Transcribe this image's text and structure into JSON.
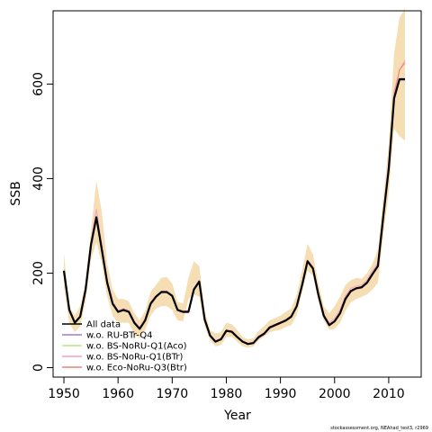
{
  "chart_data": {
    "type": "line",
    "xlabel": "Year",
    "ylabel": "SSB",
    "xlim": [
      1948,
      2016
    ],
    "ylim": [
      -20,
      755
    ],
    "xticks": [
      1950,
      1960,
      1970,
      1980,
      1990,
      2000,
      2010
    ],
    "yticks": [
      0,
      200,
      400,
      600
    ],
    "legend_position": "bottom-left",
    "credit": "stockassessment.org, NEAhad_test3, r2969",
    "band_color": "#f5deb3",
    "x": [
      1950,
      1951,
      1952,
      1953,
      1954,
      1955,
      1956,
      1957,
      1958,
      1959,
      1960,
      1961,
      1962,
      1963,
      1964,
      1965,
      1966,
      1967,
      1968,
      1969,
      1970,
      1971,
      1972,
      1973,
      1974,
      1975,
      1976,
      1977,
      1978,
      1979,
      1980,
      1981,
      1982,
      1983,
      1984,
      1985,
      1986,
      1987,
      1988,
      1989,
      1990,
      1991,
      1992,
      1993,
      1994,
      1995,
      1996,
      1997,
      1998,
      1999,
      2000,
      2001,
      2002,
      2003,
      2004,
      2005,
      2006,
      2007,
      2008,
      2009,
      2010,
      2011,
      2012,
      2013
    ],
    "band_upper": [
      242,
      130,
      110,
      130,
      180,
      290,
      395,
      330,
      220,
      165,
      145,
      145,
      140,
      115,
      100,
      120,
      160,
      175,
      190,
      192,
      178,
      140,
      135,
      190,
      225,
      215,
      120,
      80,
      72,
      75,
      95,
      92,
      80,
      65,
      60,
      62,
      78,
      88,
      100,
      105,
      110,
      118,
      125,
      155,
      205,
      262,
      240,
      180,
      130,
      115,
      130,
      150,
      175,
      185,
      190,
      188,
      200,
      220,
      250,
      360,
      470,
      665,
      740,
      760
    ],
    "band_lower": [
      170,
      95,
      75,
      88,
      140,
      230,
      265,
      220,
      150,
      110,
      95,
      95,
      95,
      70,
      62,
      80,
      110,
      125,
      130,
      130,
      122,
      100,
      98,
      145,
      155,
      150,
      88,
      58,
      45,
      48,
      65,
      65,
      55,
      45,
      42,
      45,
      58,
      66,
      75,
      78,
      80,
      86,
      90,
      112,
      160,
      205,
      195,
      140,
      100,
      80,
      82,
      95,
      120,
      138,
      145,
      150,
      155,
      165,
      180,
      280,
      370,
      505,
      490,
      480
    ],
    "series": [
      {
        "name": "All data",
        "color": "#000000",
        "values": [
          205,
          122,
          95,
          108,
          165,
          260,
          318,
          250,
          180,
          135,
          118,
          122,
          118,
          95,
          82,
          100,
          135,
          150,
          160,
          160,
          152,
          122,
          118,
          118,
          165,
          182,
          102,
          68,
          55,
          60,
          78,
          76,
          65,
          55,
          50,
          52,
          65,
          72,
          85,
          90,
          95,
          100,
          108,
          130,
          175,
          225,
          210,
          155,
          110,
          90,
          98,
          115,
          145,
          162,
          168,
          170,
          180,
          198,
          215,
          320,
          420,
          570,
          610,
          610
        ]
      },
      {
        "name": "w.o. RU-BTr-Q4",
        "color": "#a37cd0",
        "values": [
          205,
          122,
          96,
          108,
          165,
          262,
          320,
          250,
          181,
          136,
          118,
          123,
          118,
          96,
          83,
          100,
          136,
          150,
          160,
          160,
          152,
          122,
          118,
          119,
          166,
          182,
          103,
          68,
          55,
          60,
          78,
          76,
          65,
          55,
          50,
          52,
          65,
          72,
          85,
          90,
          95,
          100,
          108,
          131,
          176,
          226,
          210,
          156,
          110,
          91,
          99,
          116,
          146,
          163,
          168,
          170,
          181,
          199,
          216,
          321,
          421,
          572,
          612,
          612
        ]
      },
      {
        "name": "w.o. BS-NoRU-Q1(Aco)",
        "color": "#b8e08c",
        "values": [
          206,
          121,
          95,
          109,
          164,
          259,
          316,
          249,
          179,
          134,
          117,
          121,
          117,
          95,
          82,
          99,
          134,
          149,
          159,
          159,
          151,
          121,
          117,
          118,
          164,
          181,
          101,
          67,
          54,
          59,
          77,
          75,
          64,
          54,
          49,
          51,
          64,
          71,
          84,
          89,
          94,
          99,
          107,
          129,
          174,
          224,
          209,
          154,
          109,
          90,
          97,
          114,
          144,
          161,
          167,
          169,
          179,
          197,
          214,
          319,
          419,
          569,
          609,
          609
        ]
      },
      {
        "name": "w.o. BS-NoRu-Q1(BTr)",
        "color": "#f59ec8",
        "values": [
          203,
          124,
          97,
          110,
          170,
          268,
          335,
          260,
          186,
          140,
          121,
          125,
          121,
          98,
          85,
          103,
          138,
          152,
          162,
          162,
          154,
          124,
          120,
          121,
          168,
          185,
          105,
          70,
          57,
          62,
          80,
          78,
          67,
          57,
          52,
          54,
          67,
          74,
          87,
          92,
          96,
          102,
          110,
          133,
          178,
          228,
          213,
          158,
          113,
          95,
          104,
          122,
          152,
          168,
          172,
          175,
          186,
          205,
          222,
          330,
          432,
          585,
          630,
          650
        ]
      },
      {
        "name": "w.o. Eco-NoRu-Q3(Btr)",
        "color": "#f08070",
        "values": [
          204,
          121,
          94,
          107,
          163,
          258,
          315,
          248,
          179,
          134,
          117,
          121,
          117,
          94,
          81,
          99,
          134,
          149,
          159,
          159,
          151,
          121,
          117,
          117,
          164,
          181,
          101,
          67,
          54,
          59,
          77,
          75,
          64,
          54,
          49,
          51,
          63,
          70,
          83,
          88,
          93,
          98,
          106,
          128,
          173,
          223,
          208,
          153,
          108,
          88,
          97,
          114,
          143,
          160,
          166,
          168,
          178,
          196,
          213,
          318,
          418,
          575,
          630,
          645
        ]
      }
    ]
  }
}
